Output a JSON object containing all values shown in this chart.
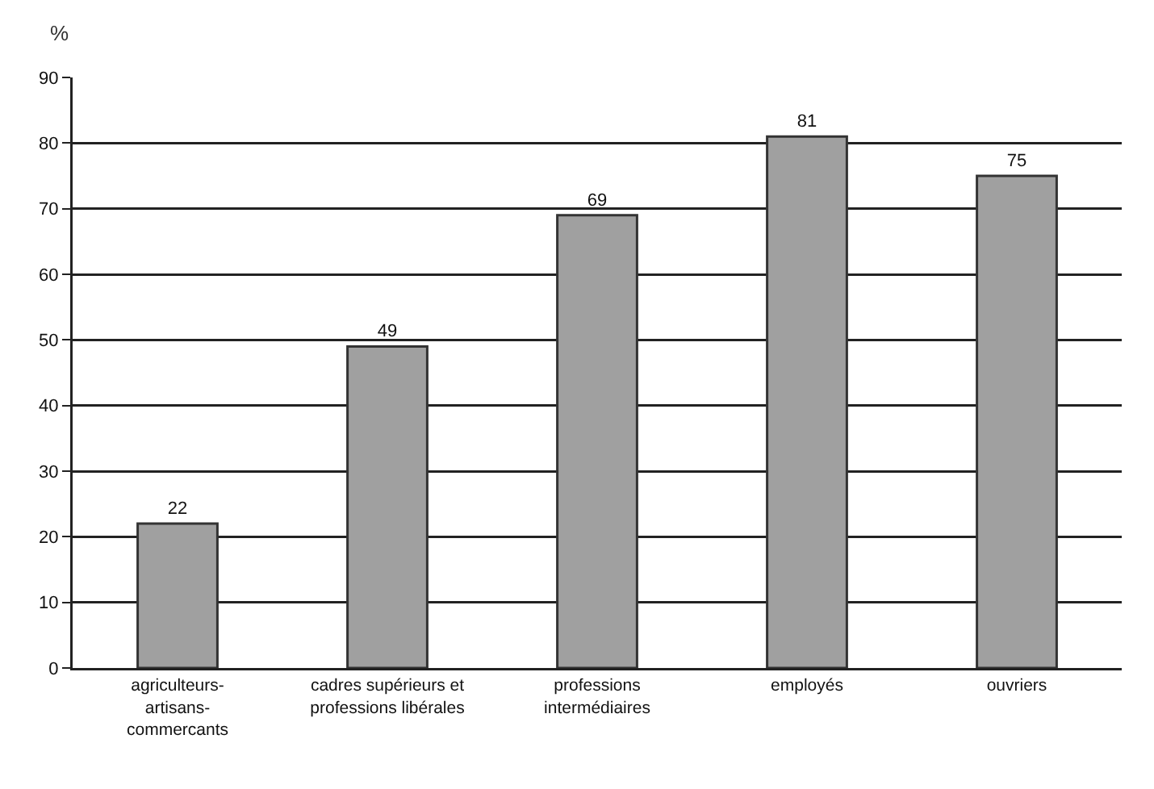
{
  "chart_data": {
    "type": "bar",
    "ylabel": "%",
    "categories": [
      "agriculteurs-\nartisans-\ncommercants",
      "cadres supérieurs et\nprofessions libérales",
      "professions\nintermédiaires",
      "employés",
      "ouvriers"
    ],
    "values": [
      22,
      49,
      69,
      81,
      75
    ],
    "color": "#a0a0a0",
    "ylim": [
      0,
      90
    ],
    "yticks": [
      0,
      10,
      20,
      30,
      40,
      50,
      60,
      70,
      80,
      90
    ],
    "grid": "y",
    "data_labels": true
  }
}
